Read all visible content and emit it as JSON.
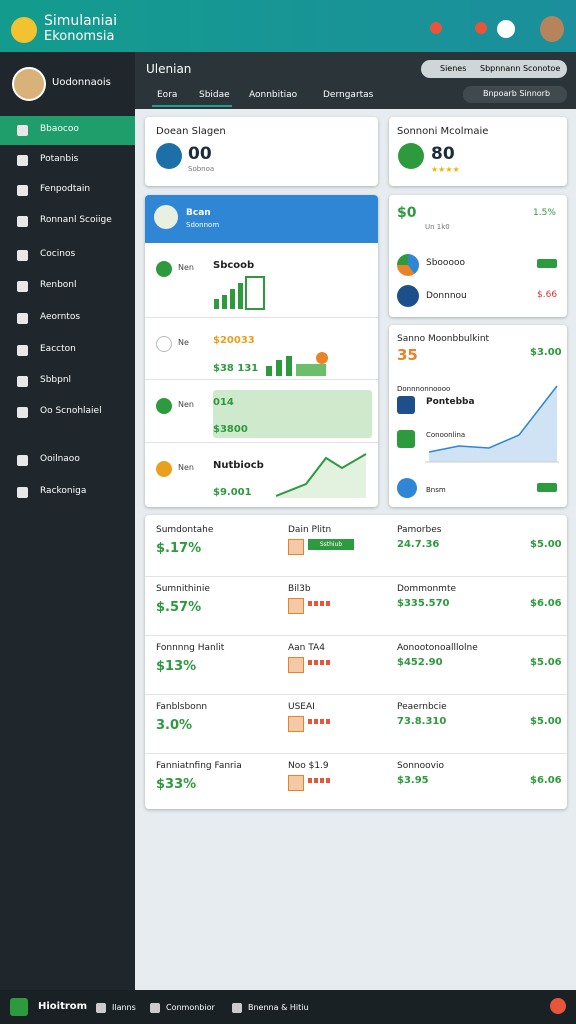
{
  "app": {
    "title_line1": "Simulaniai",
    "title_line2": "Ekonomsia"
  },
  "sidebar": {
    "user": "Uodonnaois",
    "menu": [
      "Bbaocoo",
      "Potanbis",
      "Fenpodtain",
      "Ronnanl Scoiige",
      "Cocinos",
      "Renbonl",
      "Aeorntos",
      "Eaccton",
      "Sbbpnl",
      "Oo Scnohlaiel",
      "Ooilnaoo",
      "Rackoniga"
    ]
  },
  "topbar": {
    "heading": "Ulenian",
    "tabs": [
      "Eora",
      "Sbidae",
      "Aonnbitiao",
      "Derngartas"
    ],
    "search": "Sienes",
    "filter": "Sbpnnann Sconotoe",
    "select": "Bnpoarb Sinnorb"
  },
  "summary": [
    {
      "title": "Doean Slagen",
      "value": "00",
      "sub": "Sobnoa"
    },
    {
      "title": "Sonnoni Mcolmaie",
      "value": "80"
    }
  ],
  "panel": {
    "header": "Bcan",
    "header_sub": "Sdonnom",
    "rows": [
      {
        "tag": "Nen",
        "label": "Sbcoob"
      },
      {
        "tag": "Ne",
        "label": "$20033"
      },
      {
        "tag": "Nen",
        "label": "014",
        "value": "$3800"
      },
      {
        "tag": "Nen",
        "label": "Nutbiocb",
        "value": "$9.001"
      }
    ],
    "row2_value": "$38 131"
  },
  "stats": {
    "value": "$0",
    "sub": "Un 1k0",
    "change": "1.5%",
    "items": [
      {
        "label": "Sbooooo"
      },
      {
        "label": "Donnnou",
        "value": "$.66"
      }
    ]
  },
  "trend": {
    "title": "Sanno Moonbbulkint",
    "amount": "35",
    "value": "$3.00",
    "legend": "Donnnonnoooo",
    "items": [
      "Pontebba",
      "Conoonlina",
      "Bnsm"
    ]
  },
  "list": [
    {
      "name": "Sumdontahe",
      "value": "$.17%",
      "mid": "Dain Plitn",
      "badge": "Ssthiub",
      "right": "Pamorbes",
      "right_value": "24.7.36",
      "amount": "$5.00"
    },
    {
      "name": "Sumnithinie",
      "value": "$.57%",
      "mid": "Bil3b",
      "right": "Dommonmte",
      "right_value": "$335.570",
      "amount": "$6.06"
    },
    {
      "name": "Fonnnng Hanlit",
      "value": "$13%",
      "mid": "Aan TA4",
      "right": "Aonootonoalllolne",
      "right_value": "$452.90",
      "amount": "$5.06"
    },
    {
      "name": "Fanblsbonn",
      "value": "3.0%",
      "mid": "USEAI",
      "right": "Peaernbcie",
      "right_value": "73.8.310",
      "amount": "$5.00"
    },
    {
      "name": "Fanniatnfing Fanria",
      "value": "$33%",
      "mid": "Noo $1.9",
      "right": "Sonnoovio",
      "right_value": "$3.95",
      "amount": "$6.06"
    }
  ],
  "footer": {
    "brand": "Hioitrom",
    "links": [
      "Ilanns",
      "Conmonbior",
      "Bnenna & Hitiu"
    ]
  }
}
